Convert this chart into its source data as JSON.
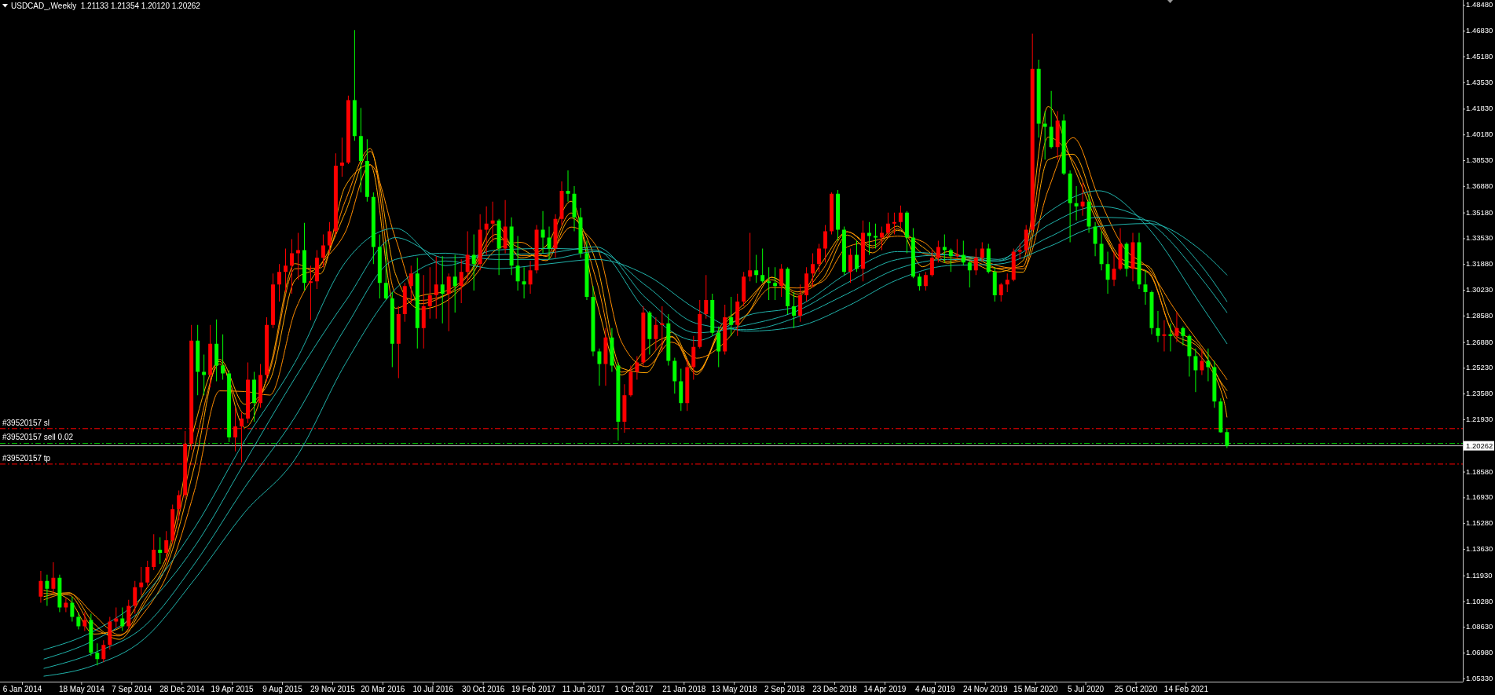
{
  "chart_data": {
    "type": "candlestick",
    "title": "USDCAD_,Weekly  1.21133 1.21354 1.20120 1.20262",
    "x": [
      "2014-02-16",
      "2014-03-02",
      "2014-03-16",
      "2014-03-30",
      "2014-04-13",
      "2014-04-27",
      "2014-05-11",
      "2014-05-25",
      "2014-06-08",
      "2014-06-22",
      "2014-07-06",
      "2014-07-20",
      "2014-08-03",
      "2014-08-17",
      "2014-08-31",
      "2014-09-14",
      "2014-09-28",
      "2014-10-12",
      "2014-10-26",
      "2014-11-09",
      "2014-11-23",
      "2014-12-07",
      "2014-12-21",
      "2015-01-04",
      "2015-01-18",
      "2015-02-01",
      "2015-02-15",
      "2015-03-01",
      "2015-03-15",
      "2015-03-29",
      "2015-04-12",
      "2015-04-26",
      "2015-05-10",
      "2015-05-24",
      "2015-06-07",
      "2015-06-21",
      "2015-07-05",
      "2015-07-19",
      "2015-08-02",
      "2015-08-16",
      "2015-08-30",
      "2015-09-13",
      "2015-09-27",
      "2015-10-11",
      "2015-10-25",
      "2015-11-08",
      "2015-11-22",
      "2015-12-06",
      "2015-12-20",
      "2016-01-03",
      "2016-01-17",
      "2016-01-31",
      "2016-02-14",
      "2016-02-28",
      "2016-03-13",
      "2016-03-27",
      "2016-04-10",
      "2016-04-24",
      "2016-05-08",
      "2016-05-22",
      "2016-06-05",
      "2016-06-19",
      "2016-07-03",
      "2016-07-17",
      "2016-07-31",
      "2016-08-14",
      "2016-08-28",
      "2016-09-11",
      "2016-09-25",
      "2016-10-09",
      "2016-10-23",
      "2016-11-06",
      "2016-11-20",
      "2016-12-04",
      "2016-12-18",
      "2017-01-01",
      "2017-01-15",
      "2017-01-29",
      "2017-02-12",
      "2017-02-26",
      "2017-03-12",
      "2017-03-26",
      "2017-04-09",
      "2017-04-23",
      "2017-05-07",
      "2017-05-21",
      "2017-06-04",
      "2017-06-18",
      "2017-07-02",
      "2017-07-16",
      "2017-07-30",
      "2017-08-13",
      "2017-08-27",
      "2017-09-10",
      "2017-09-24",
      "2017-10-08",
      "2017-10-22",
      "2017-11-05",
      "2017-11-19",
      "2017-12-03",
      "2017-12-17",
      "2017-12-31",
      "2018-01-14",
      "2018-01-28",
      "2018-02-11",
      "2018-02-25",
      "2018-03-11",
      "2018-03-25",
      "2018-04-08",
      "2018-04-22",
      "2018-05-06",
      "2018-05-20",
      "2018-06-03",
      "2018-06-17",
      "2018-07-01",
      "2018-07-15",
      "2018-07-29",
      "2018-08-12",
      "2018-08-26",
      "2018-09-09",
      "2018-09-23",
      "2018-10-07",
      "2018-10-21",
      "2018-11-04",
      "2018-11-18",
      "2018-12-02",
      "2018-12-16",
      "2018-12-30",
      "2019-01-13",
      "2019-01-27",
      "2019-02-10",
      "2019-02-24",
      "2019-03-10",
      "2019-03-24",
      "2019-04-07",
      "2019-04-21",
      "2019-05-05",
      "2019-05-19",
      "2019-06-02",
      "2019-06-16",
      "2019-06-30",
      "2019-07-14",
      "2019-07-28",
      "2019-08-11",
      "2019-08-25",
      "2019-09-08",
      "2019-09-22",
      "2019-10-06",
      "2019-10-20",
      "2019-11-03",
      "2019-11-17",
      "2019-12-01",
      "2019-12-15",
      "2019-12-29",
      "2020-01-12",
      "2020-01-26",
      "2020-02-09",
      "2020-02-23",
      "2020-03-08",
      "2020-03-22",
      "2020-04-05",
      "2020-04-19",
      "2020-05-03",
      "2020-05-17",
      "2020-05-31",
      "2020-06-14",
      "2020-06-28",
      "2020-07-12",
      "2020-07-26",
      "2020-08-09",
      "2020-08-23",
      "2020-09-06",
      "2020-09-20",
      "2020-10-04",
      "2020-10-18",
      "2020-11-01",
      "2020-11-15",
      "2020-11-29",
      "2020-12-13",
      "2020-12-27",
      "2021-01-10",
      "2021-01-24",
      "2021-02-07",
      "2021-02-21",
      "2021-03-07",
      "2021-03-21",
      "2021-04-04",
      "2021-04-18",
      "2021-05-02",
      "2021-05-16"
    ],
    "ohlc": [
      [
        1.106,
        1.1225,
        1.102,
        1.116
      ],
      [
        1.116,
        1.12,
        1.1,
        1.111
      ],
      [
        1.111,
        1.128,
        1.108,
        1.118
      ],
      [
        1.118,
        1.12,
        1.096,
        1.099
      ],
      [
        1.099,
        1.105,
        1.096,
        1.102
      ],
      [
        1.102,
        1.106,
        1.09,
        1.093
      ],
      [
        1.093,
        1.096,
        1.085,
        1.087
      ],
      [
        1.087,
        1.096,
        1.084,
        1.091
      ],
      [
        1.091,
        1.095,
        1.068,
        1.07
      ],
      [
        1.07,
        1.076,
        1.062,
        1.066
      ],
      [
        1.066,
        1.078,
        1.064,
        1.075
      ],
      [
        1.075,
        1.093,
        1.072,
        1.09
      ],
      [
        1.09,
        1.099,
        1.086,
        1.092
      ],
      [
        1.092,
        1.099,
        1.084,
        1.087
      ],
      [
        1.087,
        1.104,
        1.085,
        1.1
      ],
      [
        1.1,
        1.116,
        1.095,
        1.112
      ],
      [
        1.112,
        1.125,
        1.107,
        1.115
      ],
      [
        1.115,
        1.129,
        1.113,
        1.125
      ],
      [
        1.125,
        1.146,
        1.123,
        1.136
      ],
      [
        1.136,
        1.144,
        1.127,
        1.134
      ],
      [
        1.134,
        1.148,
        1.128,
        1.142
      ],
      [
        1.142,
        1.165,
        1.14,
        1.162
      ],
      [
        1.162,
        1.174,
        1.155,
        1.171
      ],
      [
        1.171,
        1.212,
        1.169,
        1.204
      ],
      [
        1.204,
        1.28,
        1.2,
        1.27
      ],
      [
        1.27,
        1.28,
        1.235,
        1.25
      ],
      [
        1.25,
        1.261,
        1.235,
        1.248
      ],
      [
        1.248,
        1.28,
        1.24,
        1.268
      ],
      [
        1.268,
        1.2835,
        1.244,
        1.254
      ],
      [
        1.254,
        1.274,
        1.245,
        1.249
      ],
      [
        1.249,
        1.251,
        1.205,
        1.208
      ],
      [
        1.208,
        1.227,
        1.199,
        1.215
      ],
      [
        1.215,
        1.224,
        1.192,
        1.22
      ],
      [
        1.22,
        1.256,
        1.217,
        1.245
      ],
      [
        1.245,
        1.25,
        1.218,
        1.23
      ],
      [
        1.23,
        1.255,
        1.227,
        1.248
      ],
      [
        1.248,
        1.285,
        1.244,
        1.28
      ],
      [
        1.28,
        1.313,
        1.278,
        1.306
      ],
      [
        1.306,
        1.319,
        1.295,
        1.314
      ],
      [
        1.314,
        1.329,
        1.301,
        1.318
      ],
      [
        1.318,
        1.335,
        1.3,
        1.326
      ],
      [
        1.326,
        1.339,
        1.309,
        1.328
      ],
      [
        1.328,
        1.3455,
        1.302,
        1.307
      ],
      [
        1.307,
        1.318,
        1.283,
        1.308
      ],
      [
        1.308,
        1.328,
        1.303,
        1.323
      ],
      [
        1.323,
        1.338,
        1.317,
        1.331
      ],
      [
        1.331,
        1.346,
        1.326,
        1.34
      ],
      [
        1.34,
        1.39,
        1.337,
        1.382
      ],
      [
        1.382,
        1.4,
        1.375,
        1.384
      ],
      [
        1.384,
        1.427,
        1.383,
        1.424
      ],
      [
        1.424,
        1.469,
        1.398,
        1.401
      ],
      [
        1.401,
        1.419,
        1.365,
        1.385
      ],
      [
        1.385,
        1.399,
        1.359,
        1.362
      ],
      [
        1.362,
        1.365,
        1.319,
        1.33
      ],
      [
        1.33,
        1.338,
        1.297,
        1.307
      ],
      [
        1.307,
        1.333,
        1.296,
        1.297
      ],
      [
        1.297,
        1.301,
        1.253,
        1.268
      ],
      [
        1.268,
        1.292,
        1.246,
        1.287
      ],
      [
        1.287,
        1.307,
        1.282,
        1.305
      ],
      [
        1.305,
        1.318,
        1.294,
        1.313
      ],
      [
        1.313,
        1.323,
        1.265,
        1.278
      ],
      [
        1.278,
        1.312,
        1.265,
        1.292
      ],
      [
        1.292,
        1.317,
        1.284,
        1.299
      ],
      [
        1.299,
        1.324,
        1.284,
        1.306
      ],
      [
        1.306,
        1.324,
        1.281,
        1.3
      ],
      [
        1.3,
        1.313,
        1.276,
        1.311
      ],
      [
        1.311,
        1.325,
        1.288,
        1.305
      ],
      [
        1.305,
        1.322,
        1.294,
        1.314
      ],
      [
        1.314,
        1.34,
        1.308,
        1.325
      ],
      [
        1.325,
        1.338,
        1.302,
        1.319
      ],
      [
        1.319,
        1.351,
        1.315,
        1.341
      ],
      [
        1.341,
        1.356,
        1.325,
        1.345
      ],
      [
        1.345,
        1.359,
        1.333,
        1.347
      ],
      [
        1.347,
        1.348,
        1.312,
        1.329
      ],
      [
        1.329,
        1.36,
        1.326,
        1.343
      ],
      [
        1.343,
        1.349,
        1.312,
        1.318
      ],
      [
        1.318,
        1.337,
        1.302,
        1.308
      ],
      [
        1.308,
        1.317,
        1.297,
        1.306
      ],
      [
        1.306,
        1.321,
        1.3,
        1.315
      ],
      [
        1.315,
        1.344,
        1.313,
        1.341
      ],
      [
        1.341,
        1.353,
        1.326,
        1.336
      ],
      [
        1.336,
        1.343,
        1.322,
        1.329
      ],
      [
        1.329,
        1.351,
        1.323,
        1.348
      ],
      [
        1.348,
        1.372,
        1.344,
        1.366
      ],
      [
        1.366,
        1.379,
        1.359,
        1.364
      ],
      [
        1.364,
        1.369,
        1.34,
        1.349
      ],
      [
        1.349,
        1.355,
        1.323,
        1.326
      ],
      [
        1.326,
        1.334,
        1.296,
        1.298
      ],
      [
        1.298,
        1.305,
        1.26,
        1.263
      ],
      [
        1.263,
        1.265,
        1.241,
        1.255
      ],
      [
        1.255,
        1.278,
        1.241,
        1.272
      ],
      [
        1.272,
        1.278,
        1.25,
        1.254
      ],
      [
        1.254,
        1.256,
        1.206,
        1.218
      ],
      [
        1.218,
        1.242,
        1.211,
        1.235
      ],
      [
        1.235,
        1.254,
        1.234,
        1.25
      ],
      [
        1.25,
        1.26,
        1.245,
        1.256
      ],
      [
        1.256,
        1.292,
        1.254,
        1.288
      ],
      [
        1.288,
        1.289,
        1.261,
        1.271
      ],
      [
        1.271,
        1.285,
        1.264,
        1.28
      ],
      [
        1.28,
        1.292,
        1.263,
        1.281
      ],
      [
        1.281,
        1.287,
        1.254,
        1.257
      ],
      [
        1.257,
        1.259,
        1.236,
        1.244
      ],
      [
        1.244,
        1.252,
        1.225,
        1.23
      ],
      [
        1.23,
        1.258,
        1.225,
        1.253
      ],
      [
        1.253,
        1.273,
        1.245,
        1.266
      ],
      [
        1.266,
        1.296,
        1.265,
        1.287
      ],
      [
        1.287,
        1.312,
        1.284,
        1.296
      ],
      [
        1.296,
        1.3,
        1.273,
        1.275
      ],
      [
        1.275,
        1.279,
        1.253,
        1.263
      ],
      [
        1.263,
        1.293,
        1.261,
        1.285
      ],
      [
        1.285,
        1.298,
        1.273,
        1.28
      ],
      [
        1.28,
        1.3,
        1.273,
        1.295
      ],
      [
        1.295,
        1.314,
        1.292,
        1.311
      ],
      [
        1.311,
        1.339,
        1.308,
        1.315
      ],
      [
        1.315,
        1.325,
        1.307,
        1.312
      ],
      [
        1.312,
        1.329,
        1.307,
        1.308
      ],
      [
        1.308,
        1.317,
        1.296,
        1.307
      ],
      [
        1.307,
        1.317,
        1.296,
        1.305
      ],
      [
        1.305,
        1.319,
        1.298,
        1.316
      ],
      [
        1.316,
        1.317,
        1.287,
        1.292
      ],
      [
        1.292,
        1.301,
        1.278,
        1.286
      ],
      [
        1.286,
        1.306,
        1.282,
        1.299
      ],
      [
        1.299,
        1.317,
        1.295,
        1.313
      ],
      [
        1.313,
        1.326,
        1.304,
        1.319
      ],
      [
        1.319,
        1.332,
        1.314,
        1.329
      ],
      [
        1.329,
        1.344,
        1.32,
        1.34
      ],
      [
        1.34,
        1.365,
        1.338,
        1.364
      ],
      [
        1.364,
        1.3665,
        1.334,
        1.341
      ],
      [
        1.341,
        1.343,
        1.312,
        1.314
      ],
      [
        1.314,
        1.329,
        1.307,
        1.325
      ],
      [
        1.325,
        1.334,
        1.314,
        1.316
      ],
      [
        1.316,
        1.347,
        1.308,
        1.339
      ],
      [
        1.339,
        1.346,
        1.325,
        1.337
      ],
      [
        1.337,
        1.345,
        1.329,
        1.336
      ],
      [
        1.336,
        1.343,
        1.328,
        1.339
      ],
      [
        1.339,
        1.352,
        1.336,
        1.345
      ],
      [
        1.345,
        1.352,
        1.338,
        1.346
      ],
      [
        1.346,
        1.3565,
        1.342,
        1.352
      ],
      [
        1.352,
        1.353,
        1.326,
        1.336
      ],
      [
        1.336,
        1.342,
        1.31,
        1.311
      ],
      [
        1.311,
        1.313,
        1.302,
        1.305
      ],
      [
        1.305,
        1.314,
        1.302,
        1.312
      ],
      [
        1.312,
        1.328,
        1.311,
        1.323
      ],
      [
        1.323,
        1.334,
        1.32,
        1.33
      ],
      [
        1.33,
        1.338,
        1.32,
        1.328
      ],
      [
        1.328,
        1.329,
        1.314,
        1.324
      ],
      [
        1.324,
        1.335,
        1.323,
        1.325
      ],
      [
        1.325,
        1.334,
        1.318,
        1.32
      ],
      [
        1.32,
        1.321,
        1.304,
        1.315
      ],
      [
        1.315,
        1.329,
        1.312,
        1.323
      ],
      [
        1.323,
        1.333,
        1.321,
        1.329
      ],
      [
        1.329,
        1.332,
        1.313,
        1.314
      ],
      [
        1.314,
        1.317,
        1.295,
        1.299
      ],
      [
        1.299,
        1.307,
        1.295,
        1.306
      ],
      [
        1.306,
        1.313,
        1.301,
        1.309
      ],
      [
        1.309,
        1.329,
        1.308,
        1.327
      ],
      [
        1.327,
        1.332,
        1.322,
        1.328
      ],
      [
        1.328,
        1.344,
        1.326,
        1.341
      ],
      [
        1.341,
        1.4667,
        1.34,
        1.444
      ],
      [
        1.444,
        1.45,
        1.4,
        1.409
      ],
      [
        1.409,
        1.417,
        1.386,
        1.407
      ],
      [
        1.407,
        1.43,
        1.393,
        1.394
      ],
      [
        1.394,
        1.417,
        1.386,
        1.411
      ],
      [
        1.411,
        1.415,
        1.376,
        1.377
      ],
      [
        1.377,
        1.379,
        1.333,
        1.358
      ],
      [
        1.358,
        1.369,
        1.347,
        1.356
      ],
      [
        1.356,
        1.371,
        1.35,
        1.359
      ],
      [
        1.359,
        1.364,
        1.339,
        1.343
      ],
      [
        1.343,
        1.346,
        1.324,
        1.332
      ],
      [
        1.332,
        1.34,
        1.315,
        1.319
      ],
      [
        1.319,
        1.327,
        1.3,
        1.309
      ],
      [
        1.309,
        1.327,
        1.305,
        1.316
      ],
      [
        1.316,
        1.342,
        1.315,
        1.332
      ],
      [
        1.332,
        1.333,
        1.311,
        1.316
      ],
      [
        1.316,
        1.339,
        1.308,
        1.333
      ],
      [
        1.333,
        1.339,
        1.303,
        1.306
      ],
      [
        1.306,
        1.315,
        1.293,
        1.301
      ],
      [
        1.301,
        1.302,
        1.274,
        1.278
      ],
      [
        1.278,
        1.289,
        1.269,
        1.273
      ],
      [
        1.273,
        1.283,
        1.263,
        1.274
      ],
      [
        1.274,
        1.281,
        1.263,
        1.273
      ],
      [
        1.273,
        1.288,
        1.269,
        1.278
      ],
      [
        1.278,
        1.279,
        1.267,
        1.273
      ],
      [
        1.273,
        1.274,
        1.247,
        1.26
      ],
      [
        1.26,
        1.265,
        1.237,
        1.251
      ],
      [
        1.251,
        1.265,
        1.248,
        1.257
      ],
      [
        1.257,
        1.265,
        1.244,
        1.253
      ],
      [
        1.253,
        1.257,
        1.227,
        1.231
      ],
      [
        1.231,
        1.233,
        1.211,
        1.2113
      ],
      [
        1.21133,
        1.21354,
        1.2012,
        1.20262
      ]
    ],
    "colors": [
      "#ff0000",
      "#00ff00",
      "#ff0000",
      "#00ff00",
      "#ff0000",
      "#00ff00",
      "#00ff00",
      "#ff0000",
      "#00ff00",
      "#00ff00",
      "#ff0000",
      "#ff0000",
      "#ff0000",
      "#00ff00",
      "#ff0000",
      "#ff0000",
      "#ff0000",
      "#ff0000",
      "#ff0000",
      "#00ff00",
      "#ff0000",
      "#ff0000",
      "#ff0000",
      "#ff0000",
      "#ff0000",
      "#00ff00",
      "#00ff00",
      "#ff0000",
      "#00ff00",
      "#00ff00",
      "#00ff00",
      "#ff0000",
      "#ff0000",
      "#ff0000",
      "#00ff00",
      "#ff0000",
      "#ff0000",
      "#ff0000",
      "#ff0000",
      "#ff0000",
      "#ff0000",
      "#ff0000",
      "#00ff00",
      "#ff0000",
      "#ff0000",
      "#ff0000",
      "#ff0000",
      "#ff0000",
      "#ff0000",
      "#ff0000",
      "#00ff00",
      "#00ff00",
      "#00ff00",
      "#00ff00",
      "#00ff00",
      "#00ff00",
      "#00ff00",
      "#ff0000",
      "#ff0000",
      "#ff0000",
      "#00ff00",
      "#ff0000",
      "#ff0000",
      "#ff0000",
      "#00ff00",
      "#ff0000",
      "#00ff00",
      "#ff0000",
      "#ff0000",
      "#00ff00",
      "#ff0000",
      "#ff0000",
      "#ff0000",
      "#00ff00",
      "#ff0000",
      "#00ff00",
      "#00ff00",
      "#00ff00",
      "#ff0000",
      "#ff0000",
      "#00ff00",
      "#00ff00",
      "#ff0000",
      "#ff0000",
      "#00ff00",
      "#00ff00",
      "#00ff00",
      "#00ff00",
      "#00ff00",
      "#00ff00",
      "#ff0000",
      "#00ff00",
      "#00ff00",
      "#ff0000",
      "#ff0000",
      "#ff0000",
      "#ff0000",
      "#00ff00",
      "#ff0000",
      "#ff0000",
      "#00ff00",
      "#00ff00",
      "#00ff00",
      "#ff0000",
      "#ff0000",
      "#ff0000",
      "#ff0000",
      "#00ff00",
      "#00ff00",
      "#ff0000",
      "#00ff00",
      "#ff0000",
      "#ff0000",
      "#ff0000",
      "#00ff00",
      "#00ff00",
      "#00ff00",
      "#00ff00",
      "#ff0000",
      "#00ff00",
      "#00ff00",
      "#ff0000",
      "#ff0000",
      "#ff0000",
      "#ff0000",
      "#ff0000",
      "#ff0000",
      "#00ff00",
      "#00ff00",
      "#ff0000",
      "#00ff00",
      "#ff0000",
      "#00ff00",
      "#00ff00",
      "#ff0000",
      "#ff0000",
      "#ff0000",
      "#ff0000",
      "#00ff00",
      "#00ff00",
      "#00ff00",
      "#ff0000",
      "#ff0000",
      "#ff0000",
      "#00ff00",
      "#00ff00",
      "#ff0000",
      "#00ff00",
      "#00ff00",
      "#ff0000",
      "#ff0000",
      "#00ff00",
      "#00ff00",
      "#ff0000",
      "#ff0000",
      "#ff0000",
      "#ff0000",
      "#ff0000",
      "#ff0000",
      "#00ff00",
      "#00ff00",
      "#00ff00",
      "#ff0000",
      "#00ff00",
      "#00ff00",
      "#00ff00",
      "#ff0000",
      "#00ff00",
      "#00ff00",
      "#00ff00",
      "#00ff00",
      "#ff0000",
      "#ff0000",
      "#00ff00",
      "#ff0000",
      "#00ff00",
      "#00ff00",
      "#00ff00",
      "#00ff00",
      "#ff0000",
      "#00ff00",
      "#ff0000",
      "#00ff00",
      "#00ff00",
      "#00ff00",
      "#ff0000",
      "#00ff00",
      "#00ff00",
      "#00ff00",
      "#00ff00"
    ],
    "series": [
      {
        "type": "line",
        "color": "#ffa500",
        "x": [
          "2014-02-23",
          "2014-04-20",
          "2014-06-15",
          "2014-08-10",
          "2014-10-05",
          "2014-11-30",
          "2015-01-25",
          "2015-03-22",
          "2015-05-17",
          "2015-07-12",
          "2015-09-06",
          "2015-11-01",
          "2015-12-27",
          "2016-02-21",
          "2016-04-17",
          "2016-06-12",
          "2016-08-07",
          "2016-10-02",
          "2016-11-27",
          "2017-01-22",
          "2017-03-19",
          "2017-05-14",
          "2017-07-09",
          "2017-09-03",
          "2017-10-29",
          "2017-12-24",
          "2018-02-18",
          "2018-04-15",
          "2018-06-10",
          "2018-08-05",
          "2018-09-30",
          "2018-11-25",
          "2019-01-20",
          "2019-03-17",
          "2019-05-12",
          "2019-07-07",
          "2019-09-01",
          "2019-10-27",
          "2019-12-22",
          "2020-02-16",
          "2020-04-12",
          "2020-06-07",
          "2020-08-02",
          "2020-09-27",
          "2020-11-22",
          "2021-01-17",
          "2021-03-14",
          "2021-05-09",
          "2021-05-16"
        ],
        "values": [
          1.11,
          1.104,
          1.082,
          1.0857,
          1.109,
          1.1373,
          1.215,
          1.2567,
          1.2143,
          1.2527,
          1.3193,
          1.3127,
          1.3687,
          1.3827,
          1.2907,
          1.2987,
          1.3017,
          1.3147,
          1.3443,
          1.323,
          1.3307,
          1.3593,
          1.2957,
          1.248,
          1.2647,
          1.2727,
          1.2497,
          1.278,
          1.2953,
          1.309,
          1.298,
          1.3203,
          1.3397,
          1.3307,
          1.3433,
          1.3173,
          1.327,
          1.32,
          1.314,
          1.3213,
          1.42,
          1.382,
          1.3447,
          1.319,
          1.3133,
          1.2733,
          1.2613,
          1.2318,
          1.221
        ]
      },
      {
        "type": "line",
        "color": "#ff8c00",
        "x": [
          "2014-02-23",
          "2014-04-20",
          "2014-06-15",
          "2014-08-10",
          "2014-10-05",
          "2014-11-30",
          "2015-01-25",
          "2015-03-22",
          "2015-05-17",
          "2015-07-12",
          "2015-09-06",
          "2015-11-01",
          "2015-12-27",
          "2016-02-21",
          "2016-04-17",
          "2016-06-12",
          "2016-08-07",
          "2016-10-02",
          "2016-11-27",
          "2017-01-22",
          "2017-03-19",
          "2017-05-14",
          "2017-07-09",
          "2017-09-03",
          "2017-10-29",
          "2017-12-24",
          "2018-02-18",
          "2018-04-15",
          "2018-06-10",
          "2018-08-05",
          "2018-09-30",
          "2018-11-25",
          "2019-01-20",
          "2019-03-17",
          "2019-05-12",
          "2019-07-07",
          "2019-09-01",
          "2019-10-27",
          "2019-12-22",
          "2020-02-16",
          "2020-04-12",
          "2020-06-07",
          "2020-08-02",
          "2020-09-27",
          "2020-11-22",
          "2021-01-17",
          "2021-03-14",
          "2021-05-09",
          "2021-05-16"
        ],
        "values": [
          1.108,
          1.107,
          1.0853,
          1.0808,
          1.1035,
          1.1343,
          1.2018,
          1.255,
          1.223,
          1.2508,
          1.316,
          1.3165,
          1.3593,
          1.393,
          1.3005,
          1.2958,
          1.2993,
          1.3138,
          1.338,
          1.3245,
          1.3245,
          1.3518,
          1.309,
          1.2498,
          1.2573,
          1.2723,
          1.2483,
          1.2803,
          1.2928,
          1.3105,
          1.2998,
          1.315,
          1.3398,
          1.3293,
          1.3415,
          1.326,
          1.3233,
          1.321,
          1.3163,
          1.3175,
          1.4003,
          1.385,
          1.3475,
          1.319,
          1.314,
          1.2745,
          1.2655,
          1.2381,
          1.233
        ]
      },
      {
        "type": "line",
        "color": "#ffa500",
        "x": [
          "2014-02-23",
          "2014-04-20",
          "2014-06-15",
          "2014-08-10",
          "2014-10-05",
          "2014-11-30",
          "2015-01-25",
          "2015-03-22",
          "2015-05-17",
          "2015-07-12",
          "2015-09-06",
          "2015-11-01",
          "2015-12-27",
          "2016-02-21",
          "2016-04-17",
          "2016-06-12",
          "2016-08-07",
          "2016-10-02",
          "2016-11-27",
          "2017-01-22",
          "2017-03-19",
          "2017-05-14",
          "2017-07-09",
          "2017-09-03",
          "2017-10-29",
          "2017-12-24",
          "2018-02-18",
          "2018-04-15",
          "2018-06-10",
          "2018-08-05",
          "2018-09-30",
          "2018-11-25",
          "2019-01-20",
          "2019-03-17",
          "2019-05-12",
          "2019-07-07",
          "2019-09-01",
          "2019-10-27",
          "2019-12-22",
          "2020-02-16",
          "2020-04-12",
          "2020-06-07",
          "2020-08-02",
          "2020-09-27",
          "2020-11-22",
          "2021-01-17",
          "2021-03-14",
          "2021-05-09",
          "2021-05-16"
        ],
        "values": [
          1.106,
          1.1085,
          1.0886,
          1.0786,
          1.1012,
          1.1304,
          1.1898,
          1.258,
          1.2292,
          1.2446,
          1.3088,
          1.3184,
          1.352,
          1.3912,
          1.3128,
          1.2902,
          1.295,
          1.311,
          1.3354,
          1.329,
          1.3212,
          1.3486,
          1.32,
          1.2524,
          1.2494,
          1.2754,
          1.25,
          1.2774,
          1.2868,
          1.3106,
          1.3012,
          1.3092,
          1.3376,
          1.3262,
          1.3406,
          1.33,
          1.3196,
          1.3224,
          1.316,
          1.3138,
          1.3858,
          1.3894,
          1.3496,
          1.3216,
          1.3176,
          1.2798,
          1.267,
          1.2407,
          1.238
        ]
      },
      {
        "type": "line",
        "color": "#ff8c00",
        "x": [
          "2014-02-23",
          "2014-04-20",
          "2014-06-15",
          "2014-08-10",
          "2014-10-05",
          "2014-11-30",
          "2015-01-25",
          "2015-03-22",
          "2015-05-17",
          "2015-07-12",
          "2015-09-06",
          "2015-11-01",
          "2015-12-27",
          "2016-02-21",
          "2016-04-17",
          "2016-06-12",
          "2016-08-07",
          "2016-10-02",
          "2016-11-27",
          "2017-01-22",
          "2017-03-19",
          "2017-05-14",
          "2017-07-09",
          "2017-09-03",
          "2017-10-29",
          "2017-12-24",
          "2018-02-18",
          "2018-04-15",
          "2018-06-10",
          "2018-08-05",
          "2018-09-30",
          "2018-11-25",
          "2019-01-20",
          "2019-03-17",
          "2019-05-12",
          "2019-07-07",
          "2019-09-01",
          "2019-10-27",
          "2019-12-22",
          "2020-02-16",
          "2020-04-12",
          "2020-06-07",
          "2020-08-02",
          "2020-09-27",
          "2020-11-22",
          "2021-01-17",
          "2021-03-14",
          "2021-05-09",
          "2021-05-16"
        ],
        "values": [
          1.104,
          1.108,
          1.0943,
          1.0816,
          1.0959,
          1.1234,
          1.1741,
          1.2378,
          1.2374,
          1.2351,
          1.2889,
          1.3177,
          1.3393,
          1.3826,
          1.3357,
          1.2936,
          1.299,
          1.3086,
          1.328,
          1.333,
          1.3239,
          1.3427,
          1.3306,
          1.2694,
          1.2533,
          1.269,
          1.2587,
          1.2671,
          1.2864,
          1.304,
          1.3037,
          1.3077,
          1.33,
          1.3337,
          1.3369,
          1.3334,
          1.3207,
          1.3236,
          1.3179,
          1.316,
          1.3664,
          1.4,
          1.3623,
          1.33,
          1.3161,
          1.2911,
          1.2689,
          1.248,
          1.245
        ]
      },
      {
        "type": "line",
        "color": "#20b2aa",
        "x": [
          "2014-02-23",
          "2014-06-15",
          "2014-10-05",
          "2015-01-25",
          "2015-05-17",
          "2015-09-06",
          "2015-12-27",
          "2016-04-17",
          "2016-08-07",
          "2016-11-27",
          "2017-03-19",
          "2017-07-09",
          "2017-10-29",
          "2018-02-18",
          "2018-06-10",
          "2018-09-30",
          "2019-01-20",
          "2019-05-12",
          "2019-09-01",
          "2019-12-22",
          "2020-04-12",
          "2020-08-02",
          "2020-11-22",
          "2021-03-14",
          "2021-05-16"
        ],
        "values": [
          1.072,
          1.084,
          1.107,
          1.15,
          1.206,
          1.256,
          1.32,
          1.342,
          1.318,
          1.328,
          1.329,
          1.328,
          1.289,
          1.27,
          1.286,
          1.292,
          1.313,
          1.327,
          1.325,
          1.321,
          1.352,
          1.366,
          1.342,
          1.295,
          1.268
        ]
      },
      {
        "type": "line",
        "color": "#20b2aa",
        "x": [
          "2014-02-23",
          "2014-06-15",
          "2014-10-05",
          "2015-01-25",
          "2015-05-17",
          "2015-09-06",
          "2015-12-27",
          "2016-04-17",
          "2016-08-07",
          "2016-11-27",
          "2017-03-19",
          "2017-07-09",
          "2017-10-29",
          "2018-02-18",
          "2018-06-10",
          "2018-09-30",
          "2019-01-20",
          "2019-05-12",
          "2019-09-01",
          "2019-12-22",
          "2020-04-12",
          "2020-08-02",
          "2020-11-22",
          "2021-03-14",
          "2021-05-16"
        ],
        "values": [
          1.066,
          1.078,
          1.099,
          1.138,
          1.192,
          1.246,
          1.295,
          1.336,
          1.323,
          1.325,
          1.326,
          1.33,
          1.297,
          1.275,
          1.28,
          1.289,
          1.307,
          1.322,
          1.325,
          1.322,
          1.344,
          1.356,
          1.346,
          1.312,
          1.288
        ]
      },
      {
        "type": "line",
        "color": "#20b2aa",
        "x": [
          "2014-02-23",
          "2014-06-15",
          "2014-10-05",
          "2015-01-25",
          "2015-05-17",
          "2015-09-06",
          "2015-12-27",
          "2016-04-17",
          "2016-08-07",
          "2016-11-27",
          "2017-03-19",
          "2017-07-09",
          "2017-10-29",
          "2018-02-18",
          "2018-06-10",
          "2018-09-30",
          "2019-01-20",
          "2019-05-12",
          "2019-09-01",
          "2019-12-22",
          "2020-04-12",
          "2020-08-02",
          "2020-11-22",
          "2021-03-14",
          "2021-05-16"
        ],
        "values": [
          1.06,
          1.07,
          1.087,
          1.127,
          1.176,
          1.221,
          1.278,
          1.322,
          1.326,
          1.322,
          1.322,
          1.327,
          1.305,
          1.281,
          1.277,
          1.285,
          1.3,
          1.316,
          1.322,
          1.321,
          1.336,
          1.349,
          1.347,
          1.32,
          1.295
        ]
      },
      {
        "type": "line",
        "color": "#20b2aa",
        "x": [
          "2014-02-23",
          "2014-06-15",
          "2014-10-05",
          "2015-01-25",
          "2015-05-17",
          "2015-09-06",
          "2015-12-27",
          "2016-04-17",
          "2016-08-07",
          "2016-11-27",
          "2017-03-19",
          "2017-07-09",
          "2017-10-29",
          "2018-02-18",
          "2018-06-10",
          "2018-09-30",
          "2019-01-20",
          "2019-05-12",
          "2019-09-01",
          "2019-12-22",
          "2020-04-12",
          "2020-08-02",
          "2020-11-22",
          "2021-03-14",
          "2021-05-16"
        ],
        "values": [
          1.055,
          1.062,
          1.079,
          1.117,
          1.16,
          1.194,
          1.255,
          1.303,
          1.321,
          1.316,
          1.319,
          1.322,
          1.312,
          1.29,
          1.276,
          1.279,
          1.292,
          1.309,
          1.318,
          1.319,
          1.33,
          1.343,
          1.345,
          1.329,
          1.312
        ]
      }
    ],
    "xlim": [
      "2013-11-17",
      "2022-10-24"
    ],
    "xticks": [
      {
        "value": "2014-01-06",
        "label": "6 Jan 2014"
      },
      {
        "value": "2014-05-18",
        "label": "18 May 2014"
      },
      {
        "value": "2014-09-07",
        "label": "7 Sep 2014"
      },
      {
        "value": "2014-12-28",
        "label": "28 Dec 2014"
      },
      {
        "value": "2015-04-19",
        "label": "19 Apr 2015"
      },
      {
        "value": "2015-08-09",
        "label": "9 Aug 2015"
      },
      {
        "value": "2015-11-29",
        "label": "29 Nov 2015"
      },
      {
        "value": "2016-03-20",
        "label": "20 Mar 2016"
      },
      {
        "value": "2016-07-10",
        "label": "10 Jul 2016"
      },
      {
        "value": "2016-10-30",
        "label": "30 Oct 2016"
      },
      {
        "value": "2017-02-19",
        "label": "19 Feb 2017"
      },
      {
        "value": "2017-06-11",
        "label": "11 Jun 2017"
      },
      {
        "value": "2017-10-01",
        "label": "1 Oct 2017"
      },
      {
        "value": "2018-01-21",
        "label": "21 Jan 2018"
      },
      {
        "value": "2018-05-13",
        "label": "13 May 2018"
      },
      {
        "value": "2018-09-02",
        "label": "2 Sep 2018"
      },
      {
        "value": "2018-12-23",
        "label": "23 Dec 2018"
      },
      {
        "value": "2019-04-14",
        "label": "14 Apr 2019"
      },
      {
        "value": "2019-08-04",
        "label": "4 Aug 2019"
      },
      {
        "value": "2019-11-24",
        "label": "24 Nov 2019"
      },
      {
        "value": "2020-03-15",
        "label": "15 Mar 2020"
      },
      {
        "value": "2020-07-05",
        "label": "5 Jul 2020"
      },
      {
        "value": "2020-10-25",
        "label": "25 Oct 2020"
      },
      {
        "value": "2021-02-14",
        "label": "14 Feb 2021"
      }
    ],
    "ylim": [
      1.0515,
      1.4882
    ],
    "yticks": [
      {
        "value": 1.4848,
        "label": "1.48480"
      },
      {
        "value": 1.4683,
        "label": "1.46830"
      },
      {
        "value": 1.4518,
        "label": "1.45180"
      },
      {
        "value": 1.4353,
        "label": "1.43530"
      },
      {
        "value": 1.4183,
        "label": "1.41830"
      },
      {
        "value": 1.4018,
        "label": "1.40180"
      },
      {
        "value": 1.3853,
        "label": "1.38530"
      },
      {
        "value": 1.3688,
        "label": "1.36880"
      },
      {
        "value": 1.3518,
        "label": "1.35180"
      },
      {
        "value": 1.3353,
        "label": "1.33530"
      },
      {
        "value": 1.3188,
        "label": "1.31880"
      },
      {
        "value": 1.3023,
        "label": "1.30230"
      },
      {
        "value": 1.2858,
        "label": "1.28580"
      },
      {
        "value": 1.2688,
        "label": "1.26880"
      },
      {
        "value": 1.2523,
        "label": "1.25230"
      },
      {
        "value": 1.2358,
        "label": "1.23580"
      },
      {
        "value": 1.2193,
        "label": "1.21930"
      },
      {
        "value": 1.1858,
        "label": "1.18580"
      },
      {
        "value": 1.1693,
        "label": "1.16930"
      },
      {
        "value": 1.1528,
        "label": "1.15280"
      },
      {
        "value": 1.1363,
        "label": "1.13630"
      },
      {
        "value": 1.1193,
        "label": "1.11930"
      },
      {
        "value": 1.1028,
        "label": "1.10280"
      },
      {
        "value": 1.0863,
        "label": "1.08630"
      },
      {
        "value": 1.0698,
        "label": "1.06980"
      },
      {
        "value": 1.0533,
        "label": "1.05330"
      }
    ],
    "ref_lines": [
      {
        "axis": "y",
        "value": 1.2136,
        "label": "#39520157 sl",
        "color": "#ff0000",
        "line_style": "dashed"
      },
      {
        "axis": "y",
        "value": 1.2042,
        "label": "#39520157 sell 0.02",
        "color": "#00c800",
        "line_style": "dashed"
      },
      {
        "axis": "y",
        "value": 1.1909,
        "label": "#39520157 tp",
        "color": "#ff0000",
        "line_style": "dashed"
      },
      {
        "axis": "y",
        "value": 1.20262,
        "label": "1.20262",
        "color": "#c0c0c0",
        "line_style": "solid"
      }
    ]
  }
}
